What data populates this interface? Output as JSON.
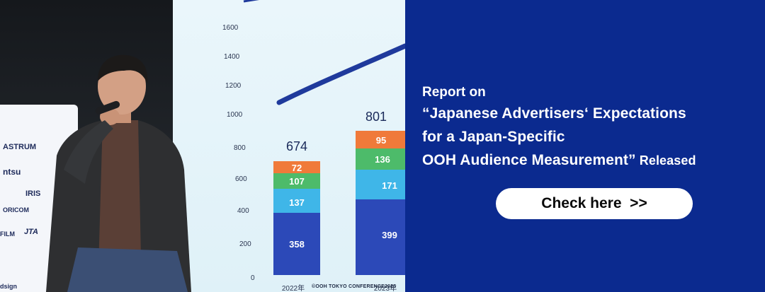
{
  "photo": {
    "chart": {
      "y_ticks": [
        "1600",
        "1400",
        "1200",
        "1000",
        "800",
        "600",
        "400",
        "200",
        "0"
      ],
      "bars": [
        {
          "year": "2022年",
          "total": "674",
          "segments": [
            "358",
            "137",
            "107",
            "72"
          ]
        },
        {
          "year": "2023年",
          "total": "801",
          "segments": [
            "399",
            "171",
            "136",
            "95"
          ]
        }
      ],
      "segment_colors": [
        "#2c49b8",
        "#3fb6e8",
        "#4dbb6a",
        "#f07a3a"
      ]
    },
    "sponsors": [
      "ASTRUM",
      "ntsu",
      "IRIS",
      "ORICOM",
      "JTA",
      "FILM",
      "dsign"
    ],
    "caption": "©OOH TOKYO CONFERENCE2025"
  },
  "headline": {
    "line1": "Report on",
    "line2": "“Japanese Advertisers‘ Expectations",
    "line3": "for a Japan-Specific",
    "line4_main": "OOH Audience Measurement”",
    "line4_suffix": " Released"
  },
  "cta": {
    "label": "Check here  >>"
  },
  "colors": {
    "panel": "#0b2a8f",
    "cta_bg": "#ffffff",
    "text": "#ffffff"
  }
}
